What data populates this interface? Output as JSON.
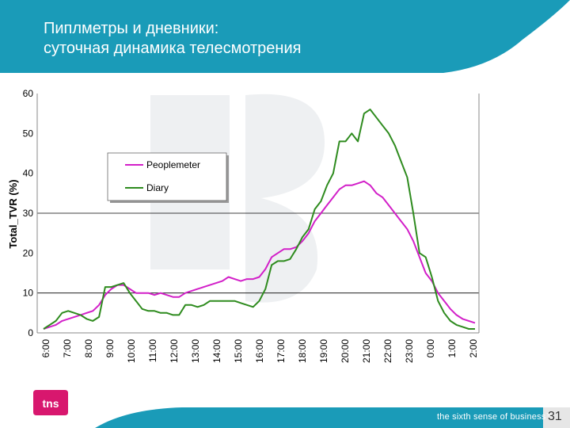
{
  "slide": {
    "title": "Пиплметры и дневники:\nсуточная динамика телесмотрения",
    "tagline": "the sixth sense of business™",
    "page_number": "31",
    "logo_text": "tns",
    "colors": {
      "header": "#1a9bb8",
      "footer": "#1a9bb8",
      "logo": "#d8176e"
    }
  },
  "chart_data": {
    "type": "line",
    "ylabel": "Total_TVR (%)",
    "ylim": [
      0,
      60
    ],
    "y_ticks": [
      "0",
      "10",
      "20",
      "30",
      "40",
      "50",
      "60"
    ],
    "x_ticks": [
      "6:00",
      "7:00",
      "8:00",
      "9:00",
      "10:00",
      "11:00",
      "12:00",
      "13:00",
      "14:00",
      "15:00",
      "16:00",
      "17:00",
      "18:00",
      "19:00",
      "20:00",
      "21:00",
      "22:00",
      "23:00",
      "0:00",
      "1:00",
      "2:00"
    ],
    "grid_lines_y": [
      10,
      30
    ],
    "legend_position": "upper-left",
    "series": [
      {
        "name": "Peoplemeter",
        "color": "#d21fc8",
        "values": [
          1.0,
          1.5,
          2.0,
          3.0,
          3.5,
          4.0,
          4.5,
          5.0,
          5.5,
          7.0,
          9.5,
          11.0,
          12.0,
          12.0,
          11.0,
          10.0,
          10.0,
          10.0,
          9.5,
          10.0,
          9.5,
          9.0,
          9.0,
          10.0,
          10.5,
          11.0,
          11.5,
          12.0,
          12.5,
          13.0,
          14.0,
          13.5,
          13.0,
          13.5,
          13.5,
          14.0,
          16.0,
          19.0,
          20.0,
          21.0,
          21.0,
          21.5,
          23.0,
          25.0,
          28.0,
          30.0,
          32.0,
          34.0,
          36.0,
          37.0,
          37.0,
          37.5,
          38.0,
          37.0,
          35.0,
          34.0,
          32.0,
          30.0,
          28.0,
          26.0,
          23.0,
          19.0,
          15.0,
          13.0,
          10.0,
          8.0,
          6.0,
          4.5,
          3.5,
          3.0,
          2.5
        ]
      },
      {
        "name": "Diary",
        "color": "#2e8b1e",
        "values": [
          1.0,
          2.0,
          3.0,
          5.0,
          5.5,
          5.0,
          4.5,
          3.5,
          3.0,
          4.0,
          11.5,
          11.5,
          12.0,
          12.5,
          10.0,
          8.0,
          6.0,
          5.5,
          5.5,
          5.0,
          5.0,
          4.5,
          4.5,
          7.0,
          7.0,
          6.5,
          7.0,
          8.0,
          8.0,
          8.0,
          8.0,
          8.0,
          7.5,
          7.0,
          6.5,
          8.0,
          11.0,
          17.0,
          18.0,
          18.0,
          18.5,
          21.0,
          24.0,
          26.0,
          31.0,
          33.0,
          37.0,
          40.0,
          48.0,
          48.0,
          50.0,
          48.0,
          55.0,
          56.0,
          54.0,
          52.0,
          50.0,
          47.0,
          43.0,
          39.0,
          30.0,
          20.0,
          19.0,
          14.0,
          8.0,
          5.0,
          3.0,
          2.0,
          1.5,
          1.0,
          1.0
        ]
      }
    ]
  }
}
